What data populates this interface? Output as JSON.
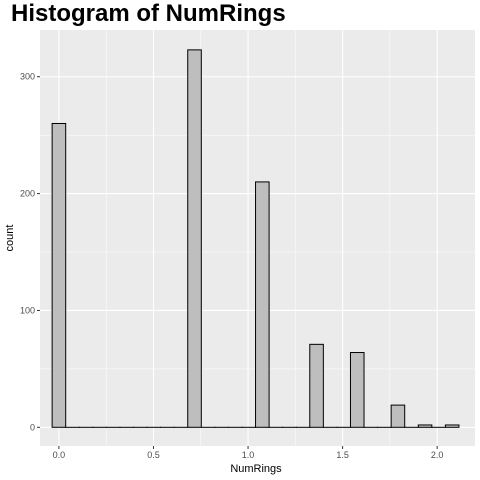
{
  "chart_data": {
    "type": "bar",
    "title": "Histogram of NumRings",
    "xlabel": "NumRings",
    "ylabel": "count",
    "xlim": [
      -0.1,
      2.2
    ],
    "ylim": [
      -16,
      340
    ],
    "x_ticks": [
      0.0,
      0.5,
      1.0,
      1.5,
      2.0
    ],
    "x_tick_labels": [
      "0.0",
      "0.5",
      "1.0",
      "1.5",
      "2.0"
    ],
    "y_ticks": [
      0,
      100,
      200,
      300
    ],
    "y_tick_labels": [
      "0",
      "100",
      "200",
      "300"
    ],
    "bin_width": 0.0717,
    "bins": [
      {
        "x": 0.0,
        "count": 260
      },
      {
        "x": 0.0717,
        "count": 0
      },
      {
        "x": 0.1434,
        "count": 0
      },
      {
        "x": 0.2151,
        "count": 0
      },
      {
        "x": 0.2868,
        "count": 0
      },
      {
        "x": 0.3585,
        "count": 0
      },
      {
        "x": 0.4302,
        "count": 0
      },
      {
        "x": 0.5019,
        "count": 0
      },
      {
        "x": 0.5736,
        "count": 0
      },
      {
        "x": 0.6453,
        "count": 0
      },
      {
        "x": 0.717,
        "count": 323
      },
      {
        "x": 0.7887,
        "count": 0
      },
      {
        "x": 0.8604,
        "count": 0
      },
      {
        "x": 0.9321,
        "count": 0
      },
      {
        "x": 1.0038,
        "count": 0
      },
      {
        "x": 1.0755,
        "count": 210
      },
      {
        "x": 1.1472,
        "count": 0
      },
      {
        "x": 1.2189,
        "count": 0
      },
      {
        "x": 1.2906,
        "count": 0
      },
      {
        "x": 1.3623,
        "count": 71
      },
      {
        "x": 1.434,
        "count": 0
      },
      {
        "x": 1.5057,
        "count": 0
      },
      {
        "x": 1.5774,
        "count": 64
      },
      {
        "x": 1.6491,
        "count": 0
      },
      {
        "x": 1.7208,
        "count": 0
      },
      {
        "x": 1.7925,
        "count": 19
      },
      {
        "x": 1.8642,
        "count": 0
      },
      {
        "x": 1.9359,
        "count": 2
      },
      {
        "x": 2.0076,
        "count": 0
      },
      {
        "x": 2.0793,
        "count": 2
      }
    ],
    "grid": true,
    "bar_fill": "#bebebe",
    "bar_stroke": "#000000",
    "panel_background": "#ebebeb",
    "grid_color": "#ffffff"
  }
}
